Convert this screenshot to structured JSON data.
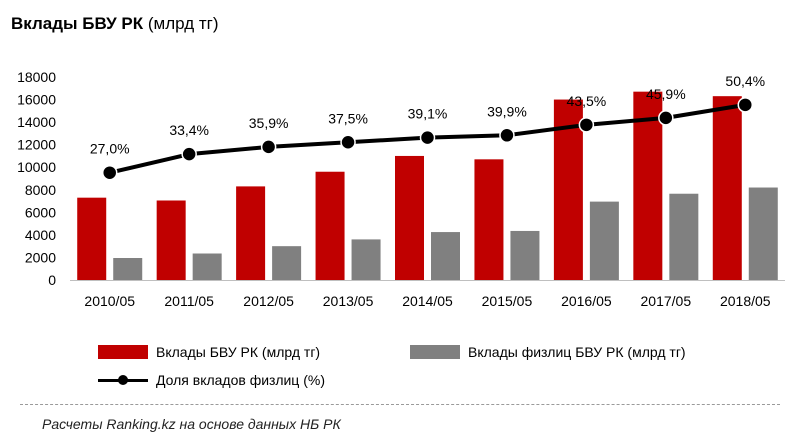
{
  "chart_data": {
    "type": "bar",
    "title": "Вклады БВУ РК",
    "title_unit": "(млрд тг)",
    "categories": [
      "2010/05",
      "2011/05",
      "2012/05",
      "2013/05",
      "2014/05",
      "2015/05",
      "2016/05",
      "2017/05",
      "2018/05"
    ],
    "series": [
      {
        "name": "Вклады БВУ РК (млрд тг)",
        "kind": "bar",
        "color": "#c00000",
        "values": [
          7300,
          7050,
          8300,
          9600,
          11000,
          10700,
          16000,
          16700,
          16300
        ]
      },
      {
        "name": "Вклады физлиц БВУ РК (млрд тг)",
        "kind": "bar",
        "color": "#808080",
        "values": [
          1950,
          2350,
          3000,
          3600,
          4250,
          4350,
          6950,
          7650,
          8200
        ]
      },
      {
        "name": "Доля вкладов физлиц (%)",
        "kind": "line",
        "color": "#000000",
        "values": [
          27.0,
          33.4,
          35.9,
          37.5,
          39.1,
          39.9,
          43.5,
          45.9,
          50.4
        ],
        "labels": [
          "27,0%",
          "33,4%",
          "35,9%",
          "37,5%",
          "39,1%",
          "39,9%",
          "43,5%",
          "45,9%",
          "50,4%"
        ]
      }
    ],
    "yticks": [
      "0",
      "2000",
      "4000",
      "6000",
      "8000",
      "10000",
      "12000",
      "14000",
      "16000",
      "18000"
    ],
    "ylim": [
      0,
      18000
    ],
    "line_axis_hidden_ylim": [
      -10,
      60
    ],
    "legend_position": "bottom"
  },
  "legend": {
    "bar1": "Вклады БВУ РК (млрд тг)",
    "bar2": "Вклады физлиц БВУ РК (млрд тг)",
    "line": "Доля вкладов физлиц (%)"
  },
  "source": "Расчеты Ranking.kz на основе данных НБ РК"
}
